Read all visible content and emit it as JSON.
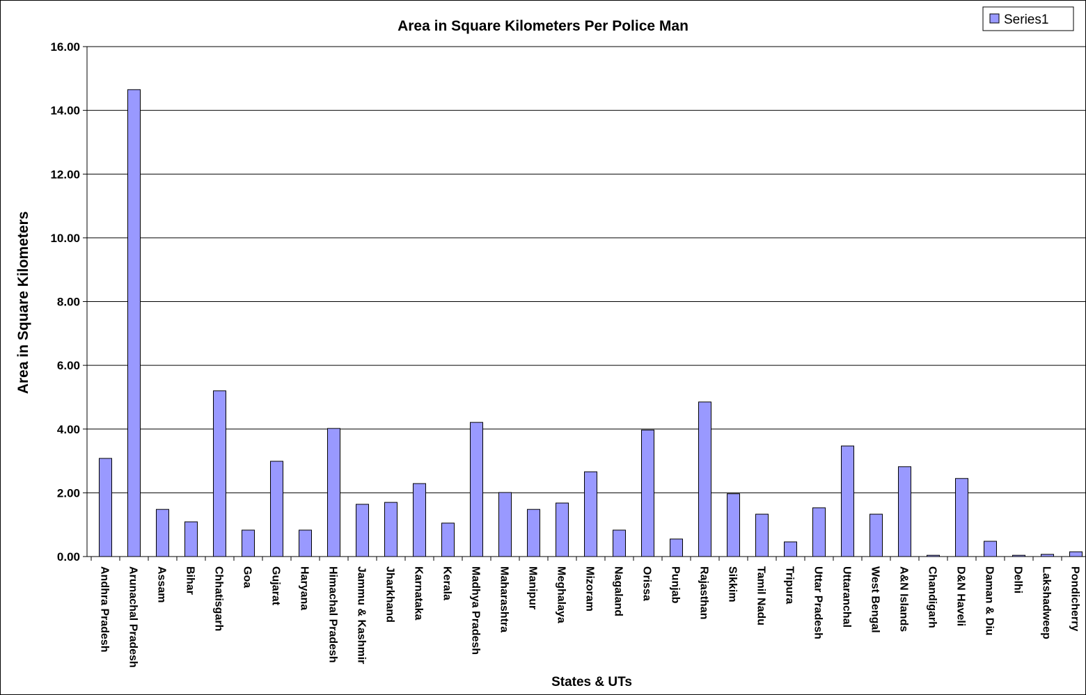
{
  "chart_data": {
    "type": "bar",
    "title": "Area in Square Kilometers Per Police Man",
    "x_label": "States & UTs",
    "y_label": "Area in Square Kilometers",
    "categories": [
      "Andhra Pradesh",
      "Arunachal Pradesh",
      "Assam",
      "Bihar",
      "Chhatisgarh",
      "Goa",
      "Gujarat",
      "Haryana",
      "Himachal Pradesh",
      "Jammu & Kashmir",
      "Jharkhand",
      "Karnataka",
      "Kerala",
      "Madhya Pradesh",
      "Maharashtra",
      "Manipur",
      "Meghalaya",
      "Mizoram",
      "Nagaland",
      "Orissa",
      "Punjab",
      "Rajasthan",
      "Sikkim",
      "Tamil Nadu",
      "Tripura",
      "Uttar Pradesh",
      "Uttaranchal",
      "West Bengal",
      "A&N Islands",
      "Chandigarh",
      "D&N Haveli",
      "Daman & Diu",
      "Delhi",
      "Lakshadweep",
      "Pondicherry"
    ],
    "series": [
      {
        "name": "Series1",
        "color": "#9999ff",
        "values": [
          3.08,
          14.65,
          1.48,
          1.09,
          5.2,
          0.83,
          2.99,
          0.83,
          4.02,
          1.64,
          1.7,
          2.29,
          1.05,
          4.21,
          2.01,
          1.48,
          1.68,
          2.66,
          0.83,
          3.97,
          0.55,
          4.85,
          1.97,
          1.33,
          0.46,
          1.53,
          3.47,
          1.33,
          2.82,
          0.04,
          2.45,
          0.48,
          0.04,
          0.07,
          0.15
        ]
      }
    ],
    "ylim": [
      0,
      16
    ],
    "yticks": [
      {
        "value": 0,
        "label": "0.00"
      },
      {
        "value": 2,
        "label": "2.00"
      },
      {
        "value": 4,
        "label": "4.00"
      },
      {
        "value": 6,
        "label": "6.00"
      },
      {
        "value": 8,
        "label": "8.00"
      },
      {
        "value": 10,
        "label": "10.00"
      },
      {
        "value": 12,
        "label": "12.00"
      },
      {
        "value": 14,
        "label": "14.00"
      },
      {
        "value": 16,
        "label": "16.00"
      }
    ],
    "grid": true,
    "legend": "top-right"
  }
}
